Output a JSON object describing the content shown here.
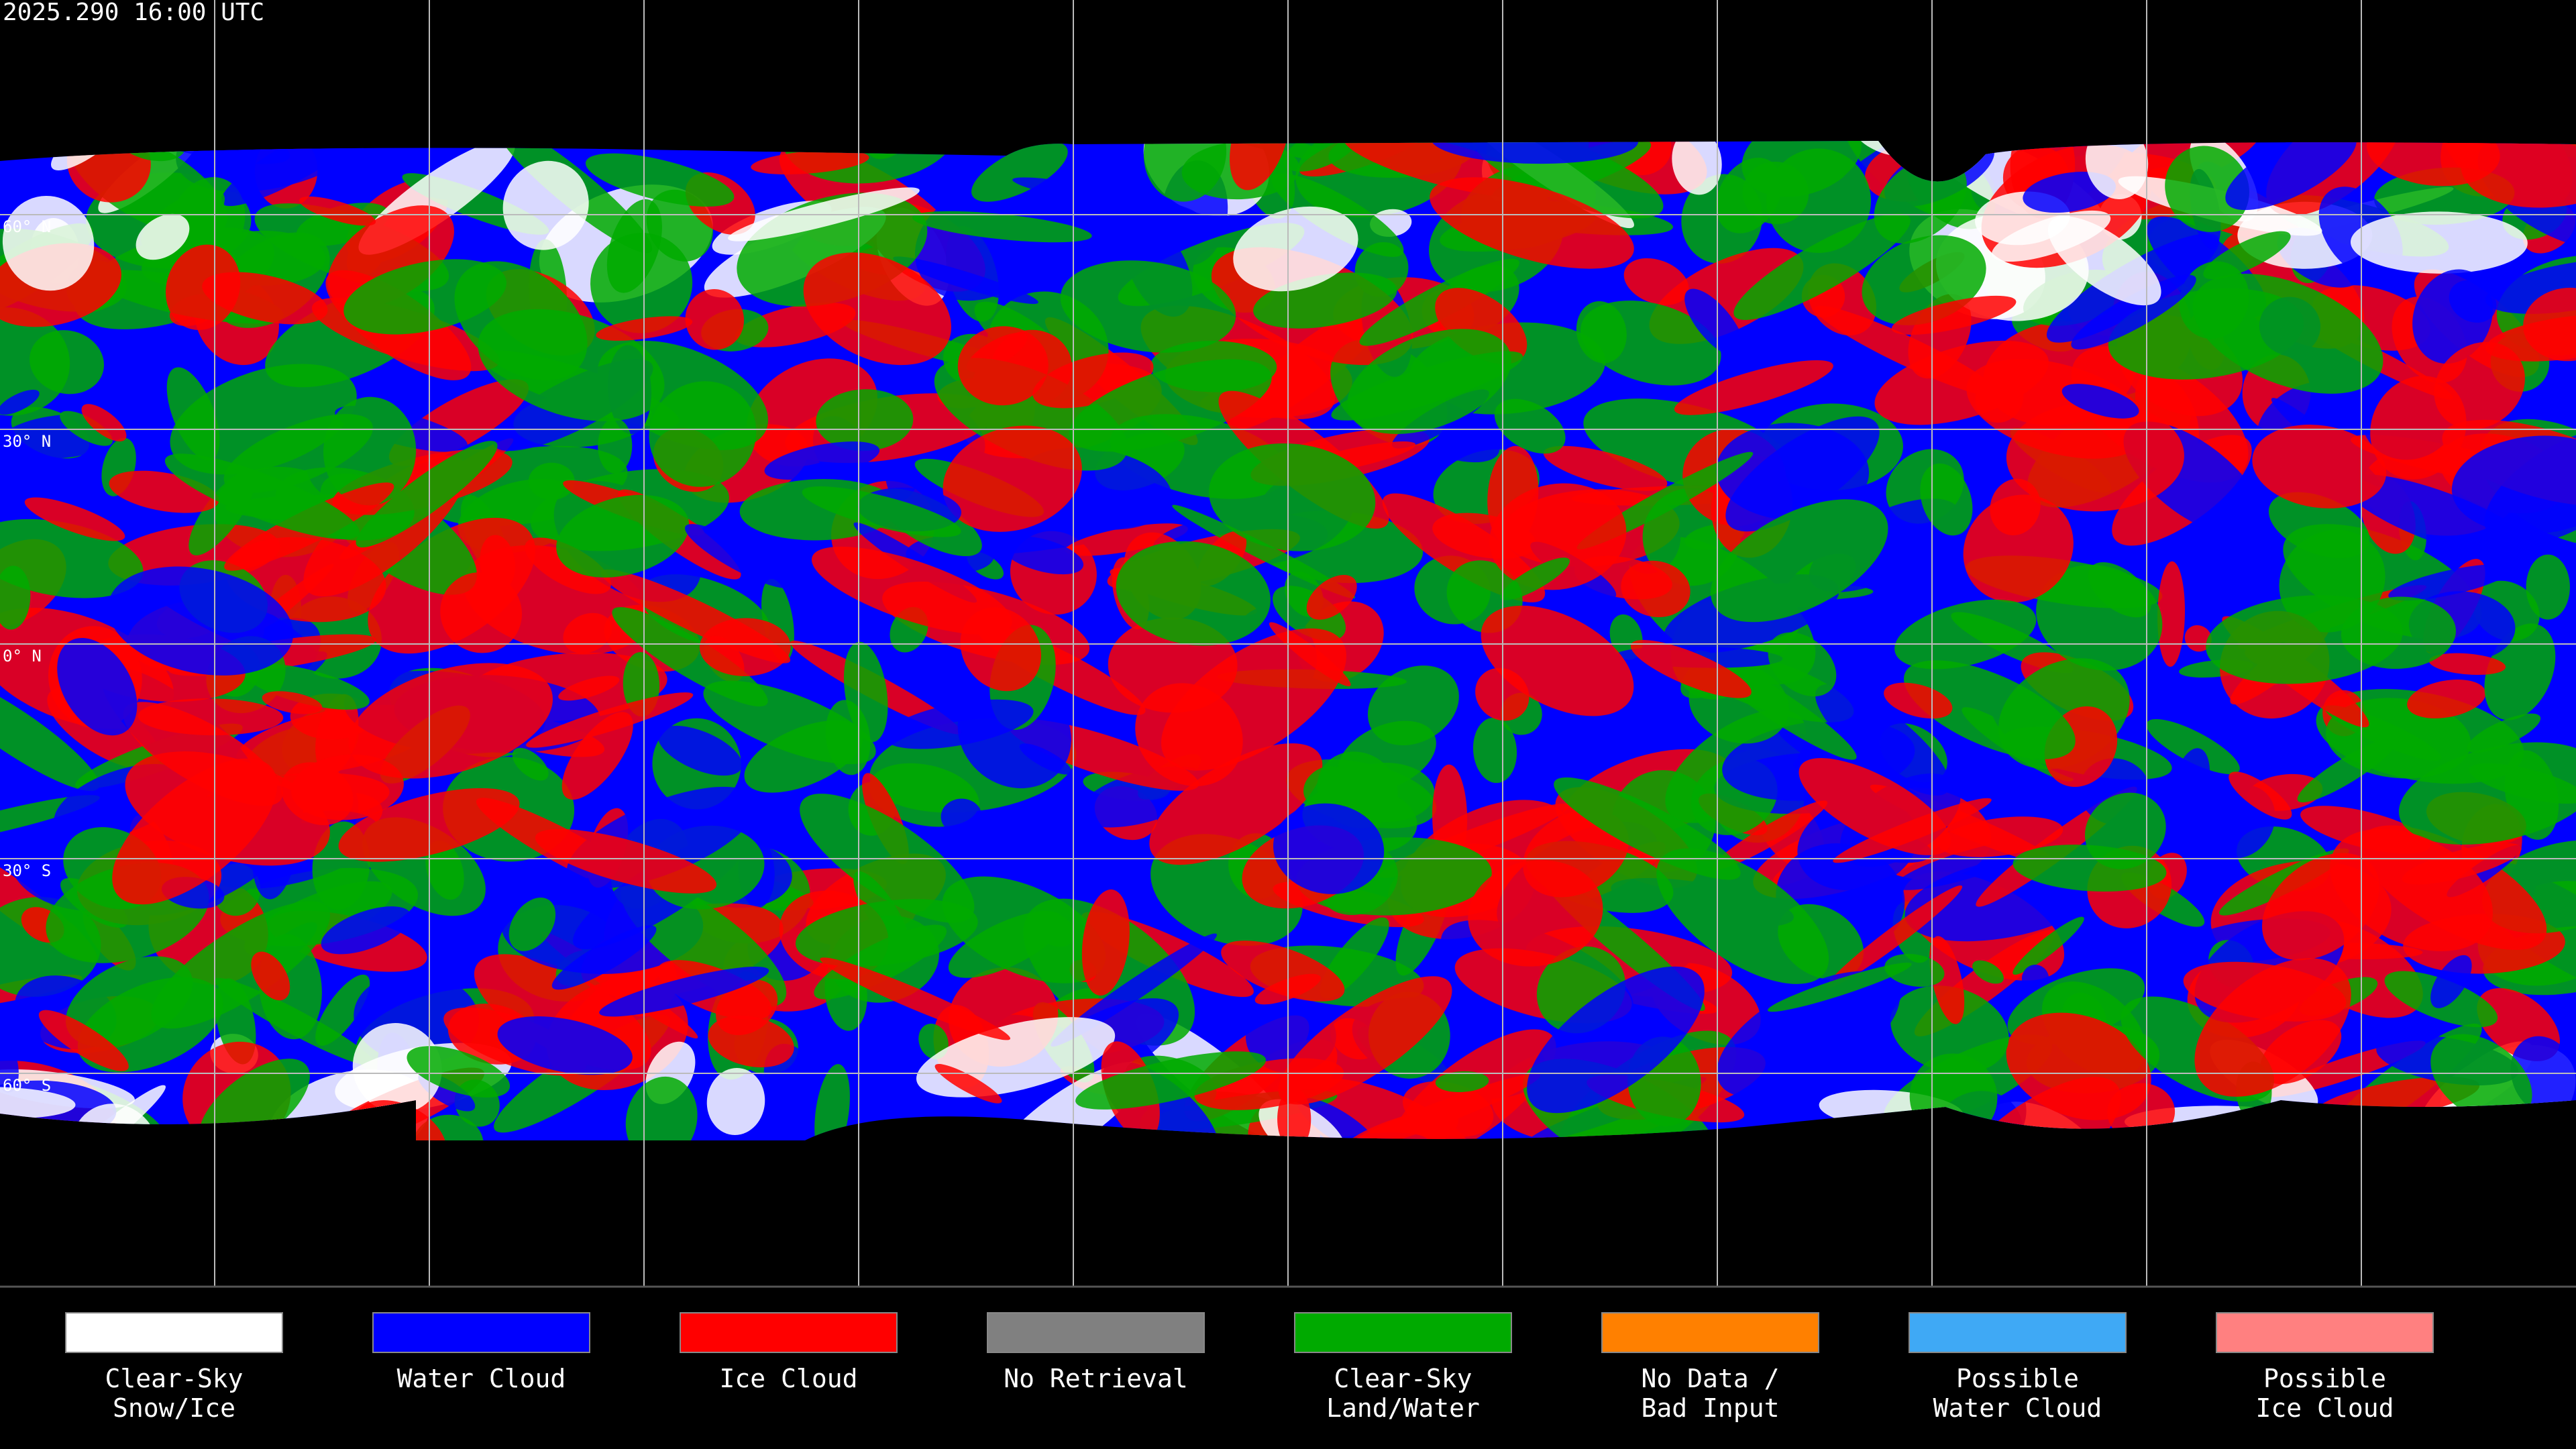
{
  "title": "2025.290 16:00 UTC",
  "latitude_labels": [
    "60° N",
    "30° N",
    "0° N",
    "30° S",
    "60° S"
  ],
  "legend": [
    {
      "lines": [
        "Clear-Sky",
        "Snow/Ice"
      ],
      "color": "#ffffff"
    },
    {
      "lines": [
        "Water Cloud"
      ],
      "color": "#0000ff"
    },
    {
      "lines": [
        "Ice Cloud"
      ],
      "color": "#ff0000"
    },
    {
      "lines": [
        "No Retrieval"
      ],
      "color": "#808080"
    },
    {
      "lines": [
        "Clear-Sky",
        "Land/Water"
      ],
      "color": "#00aa00"
    },
    {
      "lines": [
        "No Data /",
        "Bad Input"
      ],
      "color": "#ff8000"
    },
    {
      "lines": [
        "Possible",
        "Water Cloud"
      ],
      "color": "#3fa9f5"
    },
    {
      "lines": [
        "Possible",
        "Ice Cloud"
      ],
      "color": "#ff8080"
    }
  ]
}
